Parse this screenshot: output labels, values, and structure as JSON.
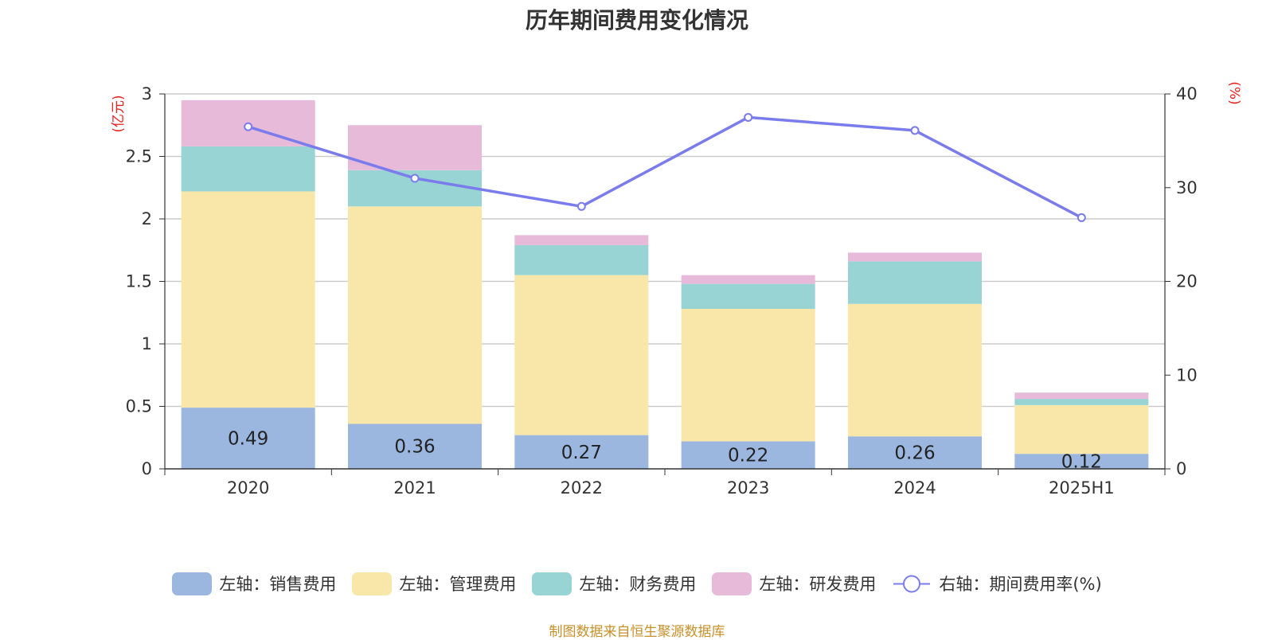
{
  "chart_data": {
    "type": "bar",
    "title": "历年期间费用变化情况",
    "categories": [
      "2020",
      "2021",
      "2022",
      "2023",
      "2024",
      "2025H1"
    ],
    "ylabel_left": "(亿元)",
    "ylabel_right": "(%)",
    "ylim_left": [
      0,
      3
    ],
    "ylim_right": [
      0,
      40
    ],
    "yticks_left": [
      "0",
      "0.5",
      "1",
      "1.5",
      "2",
      "2.5",
      "3"
    ],
    "yticks_right": [
      "0",
      "10",
      "20",
      "30",
      "40"
    ],
    "stacked": true,
    "grid": true,
    "legend_position": "bottom",
    "series": [
      {
        "name": "左轴：销售费用",
        "axis": "left",
        "type": "bar",
        "color": "#9bb7e0",
        "values": [
          0.49,
          0.36,
          0.27,
          0.22,
          0.26,
          0.12
        ],
        "labels": [
          "0.49",
          "0.36",
          "0.27",
          "0.22",
          "0.26",
          "0.12"
        ]
      },
      {
        "name": "左轴：管理费用",
        "axis": "left",
        "type": "bar",
        "color": "#f8e7a8",
        "values": [
          1.73,
          1.74,
          1.28,
          1.06,
          1.06,
          0.39
        ]
      },
      {
        "name": "左轴：财务费用",
        "axis": "left",
        "type": "bar",
        "color": "#98d4d4",
        "values": [
          0.36,
          0.29,
          0.24,
          0.2,
          0.34,
          0.05
        ]
      },
      {
        "name": "左轴：研发费用",
        "axis": "left",
        "type": "bar",
        "color": "#e7bada",
        "values": [
          0.37,
          0.36,
          0.08,
          0.07,
          0.07,
          0.05
        ]
      },
      {
        "name": "右轴：期间费用率(%)",
        "axis": "right",
        "type": "line",
        "color": "#7b7cec",
        "values": [
          36.5,
          31.0,
          28.0,
          37.5,
          36.1,
          26.8
        ]
      }
    ]
  },
  "footer": {
    "source": "制图数据来自恒生聚源数据库"
  }
}
